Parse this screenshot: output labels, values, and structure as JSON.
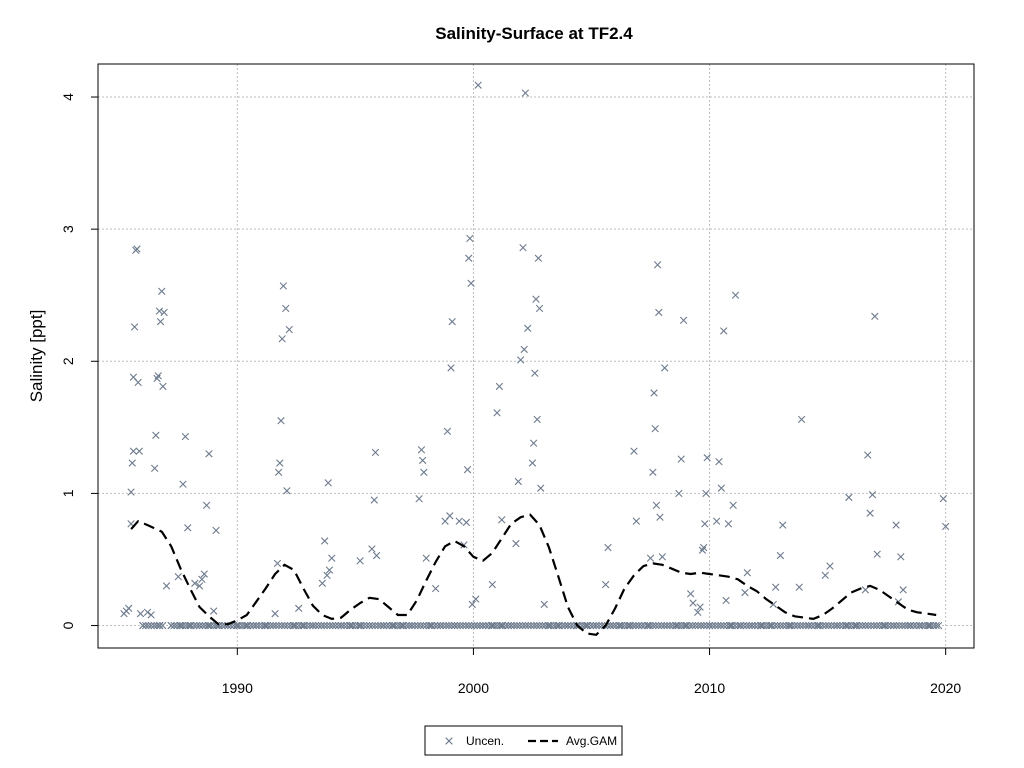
{
  "chart_data": {
    "type": "scatter",
    "title": "Salinity-Surface at TF2.4",
    "xlabel": "",
    "ylabel": "Salinity [ppt]",
    "xlim": [
      1984.1,
      2021.2
    ],
    "ylim": [
      -0.17,
      4.25
    ],
    "x_ticks": [
      1990,
      2000,
      2010,
      2020
    ],
    "y_ticks": [
      0,
      1,
      2,
      3,
      4
    ],
    "grid": true,
    "legend_position": "bottom-center",
    "colors": {
      "points": "#6d7b8d",
      "gam": "#000000",
      "grid": "#bebebe"
    },
    "series": [
      {
        "name": "Uncen.",
        "marker": "x",
        "points": [
          [
            1985.2,
            0.09
          ],
          [
            1985.3,
            0.11
          ],
          [
            1985.4,
            0.13
          ],
          [
            1985.5,
            0.77
          ],
          [
            1985.5,
            1.01
          ],
          [
            1985.55,
            1.23
          ],
          [
            1985.6,
            1.32
          ],
          [
            1985.6,
            1.88
          ],
          [
            1985.65,
            2.26
          ],
          [
            1985.7,
            2.84
          ],
          [
            1985.75,
            2.85
          ],
          [
            1985.8,
            1.84
          ],
          [
            1985.85,
            1.32
          ],
          [
            1985.9,
            0.09
          ],
          [
            1986.2,
            0.1
          ],
          [
            1986.35,
            0.08
          ],
          [
            1986.5,
            1.19
          ],
          [
            1986.55,
            1.44
          ],
          [
            1986.6,
            1.87
          ],
          [
            1986.65,
            1.89
          ],
          [
            1986.7,
            2.38
          ],
          [
            1986.75,
            2.3
          ],
          [
            1986.8,
            2.53
          ],
          [
            1986.85,
            1.81
          ],
          [
            1986.9,
            2.37
          ],
          [
            1987.0,
            0.3
          ],
          [
            1987.5,
            0.37
          ],
          [
            1987.7,
            1.07
          ],
          [
            1987.8,
            1.43
          ],
          [
            1987.9,
            0.74
          ],
          [
            1988.2,
            0.32
          ],
          [
            1988.4,
            0.3
          ],
          [
            1988.5,
            0.35
          ],
          [
            1988.6,
            0.39
          ],
          [
            1988.7,
            0.91
          ],
          [
            1988.8,
            1.3
          ],
          [
            1989.0,
            0.11
          ],
          [
            1989.1,
            0.72
          ],
          [
            1991.6,
            0.09
          ],
          [
            1991.7,
            0.47
          ],
          [
            1991.75,
            1.16
          ],
          [
            1991.8,
            1.23
          ],
          [
            1991.85,
            1.55
          ],
          [
            1991.9,
            2.17
          ],
          [
            1991.95,
            2.57
          ],
          [
            1992.05,
            2.4
          ],
          [
            1992.1,
            1.02
          ],
          [
            1992.2,
            2.24
          ],
          [
            1992.6,
            0.13
          ],
          [
            1993.6,
            0.32
          ],
          [
            1993.7,
            0.64
          ],
          [
            1993.8,
            0.38
          ],
          [
            1993.85,
            1.08
          ],
          [
            1993.9,
            0.42
          ],
          [
            1994.0,
            0.51
          ],
          [
            1995.2,
            0.49
          ],
          [
            1995.7,
            0.58
          ],
          [
            1995.8,
            0.95
          ],
          [
            1995.85,
            1.31
          ],
          [
            1995.9,
            0.53
          ],
          [
            1997.7,
            0.96
          ],
          [
            1997.8,
            1.33
          ],
          [
            1997.85,
            1.25
          ],
          [
            1997.9,
            1.16
          ],
          [
            1998.0,
            0.51
          ],
          [
            1998.4,
            0.28
          ],
          [
            1998.8,
            0.79
          ],
          [
            1998.9,
            1.47
          ],
          [
            1999.0,
            0.83
          ],
          [
            1999.05,
            1.95
          ],
          [
            1999.1,
            2.3
          ],
          [
            1999.4,
            0.79
          ],
          [
            1999.6,
            0.61
          ],
          [
            1999.7,
            0.78
          ],
          [
            1999.75,
            1.18
          ],
          [
            1999.8,
            2.78
          ],
          [
            1999.85,
            2.93
          ],
          [
            1999.9,
            2.59
          ],
          [
            1999.95,
            0.16
          ],
          [
            2000.1,
            0.2
          ],
          [
            2000.2,
            4.09
          ],
          [
            2000.8,
            0.31
          ],
          [
            2001.0,
            1.61
          ],
          [
            2001.1,
            1.81
          ],
          [
            2001.2,
            0.8
          ],
          [
            2001.8,
            0.62
          ],
          [
            2001.9,
            1.09
          ],
          [
            2002.0,
            2.01
          ],
          [
            2002.1,
            2.86
          ],
          [
            2002.15,
            2.09
          ],
          [
            2002.2,
            4.03
          ],
          [
            2002.3,
            2.25
          ],
          [
            2002.5,
            1.23
          ],
          [
            2002.55,
            1.38
          ],
          [
            2002.6,
            1.91
          ],
          [
            2002.65,
            2.47
          ],
          [
            2002.7,
            1.56
          ],
          [
            2002.75,
            2.78
          ],
          [
            2002.8,
            2.4
          ],
          [
            2002.85,
            1.04
          ],
          [
            2003.0,
            0.16
          ],
          [
            2005.6,
            0.31
          ],
          [
            2005.7,
            0.59
          ],
          [
            2006.8,
            1.32
          ],
          [
            2006.9,
            0.79
          ],
          [
            2007.5,
            0.51
          ],
          [
            2007.6,
            1.16
          ],
          [
            2007.65,
            1.76
          ],
          [
            2007.7,
            1.49
          ],
          [
            2007.75,
            0.91
          ],
          [
            2007.8,
            2.73
          ],
          [
            2007.85,
            2.37
          ],
          [
            2007.9,
            0.82
          ],
          [
            2008.0,
            0.52
          ],
          [
            2008.1,
            1.95
          ],
          [
            2008.7,
            1.0
          ],
          [
            2008.8,
            1.26
          ],
          [
            2008.9,
            2.31
          ],
          [
            2009.2,
            0.24
          ],
          [
            2009.3,
            0.17
          ],
          [
            2009.5,
            0.1
          ],
          [
            2009.6,
            0.14
          ],
          [
            2009.7,
            0.57
          ],
          [
            2009.75,
            0.59
          ],
          [
            2009.8,
            0.77
          ],
          [
            2009.85,
            1.0
          ],
          [
            2009.9,
            1.27
          ],
          [
            2010.3,
            0.79
          ],
          [
            2010.4,
            1.24
          ],
          [
            2010.5,
            1.04
          ],
          [
            2010.6,
            2.23
          ],
          [
            2010.7,
            0.19
          ],
          [
            2010.8,
            0.77
          ],
          [
            2011.0,
            0.91
          ],
          [
            2011.1,
            2.5
          ],
          [
            2011.5,
            0.25
          ],
          [
            2011.6,
            0.4
          ],
          [
            2012.7,
            0.16
          ],
          [
            2012.8,
            0.29
          ],
          [
            2013.0,
            0.53
          ],
          [
            2013.1,
            0.76
          ],
          [
            2013.8,
            0.29
          ],
          [
            2013.9,
            1.56
          ],
          [
            2014.9,
            0.38
          ],
          [
            2015.1,
            0.45
          ],
          [
            2015.9,
            0.97
          ],
          [
            2016.6,
            0.27
          ],
          [
            2016.7,
            1.29
          ],
          [
            2016.8,
            0.85
          ],
          [
            2016.9,
            0.99
          ],
          [
            2017.0,
            2.34
          ],
          [
            2017.1,
            0.54
          ],
          [
            2017.9,
            0.76
          ],
          [
            2018.0,
            0.18
          ],
          [
            2018.1,
            0.52
          ],
          [
            2018.2,
            0.27
          ],
          [
            2019.9,
            0.96
          ],
          [
            2020.0,
            0.75
          ],
          [
            1986.0,
            0.0
          ],
          [
            1986.7,
            0.0
          ],
          [
            1987.2,
            0.0
          ],
          [
            1987.6,
            0.0
          ],
          [
            1988.0,
            0.0
          ],
          [
            1988.4,
            0.0
          ],
          [
            1988.8,
            0.0
          ],
          [
            1989.2,
            0.0
          ],
          [
            1989.6,
            0.0
          ],
          [
            1990.0,
            0.0
          ],
          [
            1990.4,
            0.0
          ],
          [
            1990.8,
            0.0
          ],
          [
            1991.2,
            0.0
          ],
          [
            1992.4,
            0.0
          ],
          [
            1992.8,
            0.0
          ],
          [
            1993.2,
            0.0
          ],
          [
            1994.4,
            0.0
          ],
          [
            1994.8,
            0.0
          ],
          [
            1995.2,
            0.0
          ],
          [
            1996.2,
            0.0
          ],
          [
            1996.6,
            0.0
          ],
          [
            1997.0,
            0.0
          ],
          [
            1997.4,
            0.0
          ],
          [
            1998.2,
            0.0
          ],
          [
            1998.6,
            0.0
          ],
          [
            1999.2,
            0.0
          ],
          [
            2000.4,
            0.0
          ],
          [
            2000.8,
            0.0
          ],
          [
            2001.2,
            0.0
          ],
          [
            2001.6,
            0.0
          ],
          [
            2003.2,
            0.0
          ],
          [
            2003.6,
            0.0
          ],
          [
            2004.0,
            0.0
          ],
          [
            2004.4,
            0.0
          ],
          [
            2004.8,
            0.0
          ],
          [
            2005.2,
            0.0
          ],
          [
            2005.8,
            0.0
          ],
          [
            2006.2,
            0.0
          ],
          [
            2006.6,
            0.0
          ],
          [
            2007.0,
            0.0
          ],
          [
            2007.4,
            0.0
          ],
          [
            2008.2,
            0.0
          ],
          [
            2008.6,
            0.0
          ],
          [
            2009.0,
            0.0
          ],
          [
            2010.0,
            0.0
          ],
          [
            2010.9,
            0.0
          ],
          [
            2011.3,
            0.0
          ],
          [
            2011.8,
            0.0
          ],
          [
            2012.2,
            0.0
          ],
          [
            2012.6,
            0.0
          ],
          [
            2013.4,
            0.0
          ],
          [
            2014.2,
            0.0
          ],
          [
            2014.6,
            0.0
          ],
          [
            2015.4,
            0.0
          ],
          [
            2015.8,
            0.0
          ],
          [
            2016.2,
            0.0
          ],
          [
            2017.4,
            0.0
          ],
          [
            2017.8,
            0.0
          ],
          [
            2018.5,
            0.0
          ],
          [
            2018.9,
            0.0
          ],
          [
            2019.3,
            0.0
          ],
          [
            2019.7,
            0.0
          ]
        ]
      },
      {
        "name": "Avg.GAM",
        "line": "dashed",
        "points": [
          [
            1985.5,
            0.73
          ],
          [
            1985.8,
            0.79
          ],
          [
            1986.2,
            0.76
          ],
          [
            1986.8,
            0.71
          ],
          [
            1987.2,
            0.6
          ],
          [
            1987.6,
            0.43
          ],
          [
            1988.0,
            0.28
          ],
          [
            1988.4,
            0.14
          ],
          [
            1988.8,
            0.07
          ],
          [
            1989.2,
            0.01
          ],
          [
            1989.6,
            0.01
          ],
          [
            1990.0,
            0.04
          ],
          [
            1990.4,
            0.08
          ],
          [
            1990.8,
            0.18
          ],
          [
            1991.2,
            0.28
          ],
          [
            1991.6,
            0.39
          ],
          [
            1992.0,
            0.46
          ],
          [
            1992.4,
            0.42
          ],
          [
            1992.8,
            0.28
          ],
          [
            1993.2,
            0.15
          ],
          [
            1993.6,
            0.08
          ],
          [
            1994.0,
            0.05
          ],
          [
            1994.4,
            0.06
          ],
          [
            1994.8,
            0.12
          ],
          [
            1995.2,
            0.17
          ],
          [
            1995.6,
            0.21
          ],
          [
            1996.0,
            0.2
          ],
          [
            1996.4,
            0.14
          ],
          [
            1996.8,
            0.08
          ],
          [
            1997.2,
            0.08
          ],
          [
            1997.6,
            0.19
          ],
          [
            1998.0,
            0.34
          ],
          [
            1998.4,
            0.48
          ],
          [
            1998.8,
            0.6
          ],
          [
            1999.2,
            0.64
          ],
          [
            1999.6,
            0.6
          ],
          [
            2000.0,
            0.52
          ],
          [
            2000.4,
            0.49
          ],
          [
            2000.8,
            0.55
          ],
          [
            2001.2,
            0.66
          ],
          [
            2001.6,
            0.77
          ],
          [
            2002.0,
            0.82
          ],
          [
            2002.4,
            0.84
          ],
          [
            2002.8,
            0.76
          ],
          [
            2003.2,
            0.59
          ],
          [
            2003.6,
            0.37
          ],
          [
            2004.0,
            0.14
          ],
          [
            2004.4,
            0.0
          ],
          [
            2004.8,
            -0.06
          ],
          [
            2005.2,
            -0.07
          ],
          [
            2005.6,
            0.0
          ],
          [
            2006.0,
            0.13
          ],
          [
            2006.4,
            0.28
          ],
          [
            2006.8,
            0.38
          ],
          [
            2007.2,
            0.45
          ],
          [
            2007.6,
            0.47
          ],
          [
            2008.0,
            0.46
          ],
          [
            2008.4,
            0.43
          ],
          [
            2008.8,
            0.4
          ],
          [
            2009.2,
            0.39
          ],
          [
            2009.6,
            0.4
          ],
          [
            2010.0,
            0.39
          ],
          [
            2010.4,
            0.38
          ],
          [
            2010.8,
            0.37
          ],
          [
            2011.2,
            0.35
          ],
          [
            2011.6,
            0.3
          ],
          [
            2012.0,
            0.26
          ],
          [
            2012.4,
            0.2
          ],
          [
            2012.8,
            0.15
          ],
          [
            2013.2,
            0.1
          ],
          [
            2013.6,
            0.07
          ],
          [
            2014.0,
            0.06
          ],
          [
            2014.4,
            0.05
          ],
          [
            2014.8,
            0.08
          ],
          [
            2015.2,
            0.13
          ],
          [
            2015.6,
            0.19
          ],
          [
            2016.0,
            0.25
          ],
          [
            2016.4,
            0.28
          ],
          [
            2016.8,
            0.3
          ],
          [
            2017.2,
            0.27
          ],
          [
            2017.6,
            0.22
          ],
          [
            2018.0,
            0.17
          ],
          [
            2018.4,
            0.12
          ],
          [
            2018.8,
            0.1
          ],
          [
            2019.2,
            0.09
          ],
          [
            2019.6,
            0.08
          ]
        ]
      }
    ]
  }
}
